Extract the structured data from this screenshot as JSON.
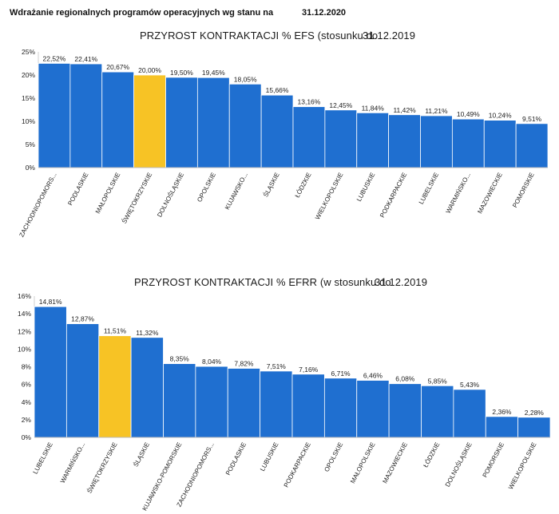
{
  "header": {
    "title": "Wdrażanie regionalnych programów operacyjnych wg stanu na",
    "date": "31.12.2020"
  },
  "colors": {
    "bar": "#1f6fd0",
    "highlight": "#f7c325"
  },
  "chart_data": [
    {
      "type": "bar",
      "title": "PRZYROST KONTRAKTACJI % EFS (stosunku do",
      "title_date": "31.12.2019",
      "ylim": [
        0,
        25
      ],
      "yticks": [
        0,
        5,
        10,
        15,
        20,
        25
      ],
      "ytick_labels": [
        "0%",
        "5%",
        "10%",
        "15%",
        "20%",
        "25%"
      ],
      "categories": [
        "ZACHODNIOPOMORS...",
        "PODLASKIE",
        "MAŁOPOLSKIE",
        "ŚWIĘTOKRZYSKIE",
        "DOLNOŚLĄSKIE",
        "OPOLSKIE",
        "KUJAWSKO...",
        "ŚLĄSKIE",
        "ŁÓDZKIE",
        "WIELKOPOLSKIE",
        "LUBUSKIE",
        "PODKARPACKIE",
        "LUBELSKIE",
        "WARMIŃSKO...",
        "MAZOWIECKIE",
        "POMORSKIE"
      ],
      "values": [
        22.52,
        22.41,
        20.67,
        20.0,
        19.5,
        19.45,
        18.05,
        15.66,
        13.16,
        12.45,
        11.84,
        11.42,
        11.21,
        10.49,
        10.24,
        9.51
      ],
      "value_labels": [
        "22,52%",
        "22,41%",
        "20,67%",
        "20,00%",
        "19,50%",
        "19,45%",
        "18,05%",
        "15,66%",
        "13,16%",
        "12,45%",
        "11,84%",
        "11,42%",
        "11,21%",
        "10,49%",
        "10,24%",
        "9,51%"
      ],
      "highlight": "ŚWIĘTOKRZYSKIE"
    },
    {
      "type": "bar",
      "title": "PRZYROST KONTRAKTACJI % EFRR (w stosunku do",
      "title_date": "31.12.2019",
      "ylim": [
        0,
        16
      ],
      "yticks": [
        0,
        2,
        4,
        6,
        8,
        10,
        12,
        14,
        16
      ],
      "ytick_labels": [
        "0%",
        "2%",
        "4%",
        "6%",
        "8%",
        "10%",
        "12%",
        "14%",
        "16%"
      ],
      "categories": [
        "LUBELSKIE",
        "WARMIŃSKO...",
        "ŚWIĘTOKRZYSKIE",
        "ŚLĄSKIE",
        "KUJAWSKO-POMORSKIE",
        "ZACHODNIOPOMORS...",
        "PODLASKIE",
        "LUBUSKIE",
        "PODKARPACKIE",
        "OPOLSKIE",
        "MAŁOPOLSKIE",
        "MAZOWIECKIE",
        "ŁÓDZKIE",
        "DOLNOŚLĄSKIE",
        "POMORSKIE",
        "WIELKOPOLSKIE"
      ],
      "values": [
        14.81,
        12.87,
        11.51,
        11.32,
        8.35,
        8.04,
        7.82,
        7.51,
        7.16,
        6.71,
        6.46,
        6.08,
        5.85,
        5.43,
        2.36,
        2.28
      ],
      "value_labels": [
        "14,81%",
        "12,87%",
        "11,51%",
        "11,32%",
        "8,35%",
        "8,04%",
        "7,82%",
        "7,51%",
        "7,16%",
        "6,71%",
        "6,46%",
        "6,08%",
        "5,85%",
        "5,43%",
        "2,36%",
        "2,28%"
      ],
      "highlight": "ŚWIĘTOKRZYSKIE"
    }
  ]
}
